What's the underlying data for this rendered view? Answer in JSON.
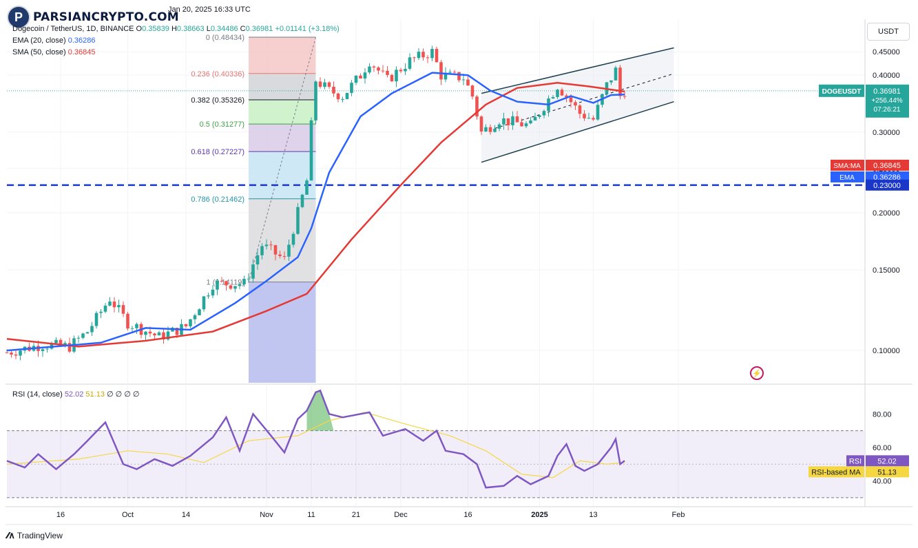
{
  "watermark": {
    "logo_text": "PARSIANCRYPTO.COM",
    "logo_letter": "P"
  },
  "header": {
    "timestamp": "Jan 20, 2025 16:33 UTC",
    "symbol": "Dogecoin / TetherUS, 1D, BINANCE",
    "ohlc": {
      "o_label": "O",
      "o": "0.35839",
      "h_label": "H",
      "h": "0.38663",
      "l_label": "L",
      "l": "0.34486",
      "c_label": "C",
      "c": "0.36981",
      "change": "+0.01141 (+3.18%)"
    },
    "ema": {
      "label": "EMA (20, close)",
      "value": "0.36286"
    },
    "sma": {
      "label": "SMA (50, close)",
      "value": "0.36845"
    }
  },
  "currency_button": "USDT",
  "footer": {
    "brand": "TradingView"
  },
  "colors": {
    "up": "#26a69a",
    "down": "#ef5350",
    "ema": "#2962ff",
    "sma": "#e53935",
    "rsi": "#7e57c2",
    "rsi_ma": "#f5d742",
    "support": "#1a37c8",
    "channel": "#1d3f4f"
  },
  "chart_data": {
    "type": "candlestick",
    "title": "Dogecoin / TetherUS, 1D, BINANCE",
    "y_scale": "log",
    "ylim": [
      0.085,
      0.53
    ],
    "y_ticks": [
      "0.45000",
      "0.40000",
      "0.30000",
      "0.25000",
      "0.20000",
      "0.15000",
      "0.10000"
    ],
    "x_ticks": [
      "16",
      "Oct",
      "14",
      "Nov",
      "11",
      "21",
      "Dec",
      "16",
      "2025",
      "13",
      "Feb"
    ],
    "price_series": [
      {
        "date": "2024-09-04",
        "value": 0.099
      },
      {
        "date": "2024-09-12",
        "value": 0.103
      },
      {
        "date": "2024-09-18",
        "value": 0.102
      },
      {
        "date": "2024-09-22",
        "value": 0.11
      },
      {
        "date": "2024-09-27",
        "value": 0.13
      },
      {
        "date": "2024-10-01",
        "value": 0.115
      },
      {
        "date": "2024-10-08",
        "value": 0.107
      },
      {
        "date": "2024-10-14",
        "value": 0.113
      },
      {
        "date": "2024-10-20",
        "value": 0.14
      },
      {
        "date": "2024-10-27",
        "value": 0.14
      },
      {
        "date": "2024-10-31",
        "value": 0.17
      },
      {
        "date": "2024-11-05",
        "value": 0.158
      },
      {
        "date": "2024-11-08",
        "value": 0.2
      },
      {
        "date": "2024-11-10",
        "value": 0.235
      },
      {
        "date": "2024-11-11",
        "value": 0.31
      },
      {
        "date": "2024-11-12",
        "value": 0.39
      },
      {
        "date": "2024-11-15",
        "value": 0.37
      },
      {
        "date": "2024-11-18",
        "value": 0.36
      },
      {
        "date": "2024-11-22",
        "value": 0.4
      },
      {
        "date": "2024-11-24",
        "value": 0.43
      },
      {
        "date": "2024-11-28",
        "value": 0.39
      },
      {
        "date": "2024-12-03",
        "value": 0.43
      },
      {
        "date": "2024-12-08",
        "value": 0.45
      },
      {
        "date": "2024-12-10",
        "value": 0.4
      },
      {
        "date": "2024-12-15",
        "value": 0.395
      },
      {
        "date": "2024-12-17",
        "value": 0.36
      },
      {
        "date": "2024-12-19",
        "value": 0.3
      },
      {
        "date": "2024-12-23",
        "value": 0.32
      },
      {
        "date": "2024-12-30",
        "value": 0.31
      },
      {
        "date": "2025-01-05",
        "value": 0.38
      },
      {
        "date": "2025-01-08",
        "value": 0.35
      },
      {
        "date": "2025-01-10",
        "value": 0.33
      },
      {
        "date": "2025-01-13",
        "value": 0.32
      },
      {
        "date": "2025-01-16",
        "value": 0.38
      },
      {
        "date": "2025-01-18",
        "value": 0.41
      },
      {
        "date": "2025-01-19",
        "value": 0.36
      },
      {
        "date": "2025-01-20",
        "value": 0.36981
      }
    ],
    "ema_series": [
      {
        "date": "2024-09-04",
        "value": 0.1
      },
      {
        "date": "2024-09-25",
        "value": 0.104
      },
      {
        "date": "2024-10-05",
        "value": 0.112
      },
      {
        "date": "2024-10-15",
        "value": 0.111
      },
      {
        "date": "2024-10-25",
        "value": 0.127
      },
      {
        "date": "2024-11-01",
        "value": 0.142
      },
      {
        "date": "2024-11-08",
        "value": 0.16
      },
      {
        "date": "2024-11-11",
        "value": 0.185
      },
      {
        "date": "2024-11-15",
        "value": 0.245
      },
      {
        "date": "2024-11-22",
        "value": 0.325
      },
      {
        "date": "2024-11-29",
        "value": 0.365
      },
      {
        "date": "2024-12-08",
        "value": 0.405
      },
      {
        "date": "2024-12-16",
        "value": 0.4
      },
      {
        "date": "2024-12-21",
        "value": 0.37
      },
      {
        "date": "2024-12-27",
        "value": 0.35
      },
      {
        "date": "2025-01-03",
        "value": 0.345
      },
      {
        "date": "2025-01-08",
        "value": 0.36
      },
      {
        "date": "2025-01-13",
        "value": 0.348
      },
      {
        "date": "2025-01-17",
        "value": 0.362
      },
      {
        "date": "2025-01-20",
        "value": 0.36286
      }
    ],
    "sma_series": [
      {
        "date": "2024-09-04",
        "value": 0.106
      },
      {
        "date": "2024-09-20",
        "value": 0.102
      },
      {
        "date": "2024-10-05",
        "value": 0.105
      },
      {
        "date": "2024-10-20",
        "value": 0.11
      },
      {
        "date": "2024-11-01",
        "value": 0.122
      },
      {
        "date": "2024-11-10",
        "value": 0.133
      },
      {
        "date": "2024-11-20",
        "value": 0.175
      },
      {
        "date": "2024-12-01",
        "value": 0.23
      },
      {
        "date": "2024-12-10",
        "value": 0.285
      },
      {
        "date": "2024-12-20",
        "value": 0.345
      },
      {
        "date": "2024-12-27",
        "value": 0.375
      },
      {
        "date": "2025-01-05",
        "value": 0.385
      },
      {
        "date": "2025-01-12",
        "value": 0.378
      },
      {
        "date": "2025-01-20",
        "value": 0.36845
      }
    ],
    "fibonacci": [
      {
        "label": "0 (0.48434)",
        "value": 0.48434,
        "color": "#787b86",
        "fill": "#f4c7c7"
      },
      {
        "label": "0.236 (0.40336)",
        "value": 0.40336,
        "color": "#e57373",
        "fill": "#d2d3d7"
      },
      {
        "label": "0.382 (0.35326)",
        "value": 0.35326,
        "color": "#131722",
        "fill": "#c8f0c4"
      },
      {
        "label": "0.5 (0.31277)",
        "value": 0.31277,
        "color": "#43a047",
        "fill": "#d8cbe8"
      },
      {
        "label": "0.618 (0.27227)",
        "value": 0.27227,
        "color": "#5e35b1",
        "fill": "#c7e4f5"
      },
      {
        "label": "0.786 (0.21462)",
        "value": 0.21462,
        "color": "#2196a6",
        "fill": "#dcdcde"
      },
      {
        "label": "1 (0.14119)",
        "value": 0.14119,
        "color": "#787b86",
        "fill": "#b6bcef"
      }
    ],
    "support_level": 0.23,
    "channel": {
      "upper": [
        {
          "date": "2024-12-19",
          "value": 0.365
        },
        {
          "date": "2025-01-31",
          "value": 0.459
        }
      ],
      "lower": [
        {
          "date": "2024-12-19",
          "value": 0.258
        },
        {
          "date": "2025-01-31",
          "value": 0.35
        }
      ],
      "mid": [
        {
          "date": "2024-12-22",
          "value": 0.306
        },
        {
          "date": "2025-01-31",
          "value": 0.403
        }
      ]
    },
    "price_labels": [
      {
        "text": "DOGEUSDT",
        "value_text": "0.36981",
        "change": "+256.44%",
        "countdown": "07:26:21",
        "value": 0.36981,
        "color": "#26a69a"
      },
      {
        "text": "SMA:MA",
        "value_text": "0.36845",
        "value": 0.36845,
        "color": "#e53935"
      },
      {
        "text": "EMA",
        "value_text": "0.36286",
        "value": 0.36286,
        "color": "#2962ff"
      },
      {
        "text": "",
        "value_text": "0.23000",
        "value": 0.23,
        "color": "#1a37c8"
      }
    ],
    "rsi": {
      "label": "RSI (14, close)",
      "value": "52.02",
      "ma_value": "51.13",
      "extra": "∅ ∅ ∅ ∅",
      "ylim": [
        25,
        97
      ],
      "y_ticks": [
        "80.00",
        "60.00",
        "40.00"
      ],
      "upper_band": 70,
      "lower_band": 30,
      "mid_band": 50,
      "rsi_label": "RSI",
      "ma_label": "RSI-based MA",
      "series": [
        {
          "date": "2024-09-04",
          "value": 52
        },
        {
          "date": "2024-09-08",
          "value": 48
        },
        {
          "date": "2024-09-11",
          "value": 56
        },
        {
          "date": "2024-09-15",
          "value": 47
        },
        {
          "date": "2024-09-19",
          "value": 56
        },
        {
          "date": "2024-09-22",
          "value": 64
        },
        {
          "date": "2024-09-26",
          "value": 75
        },
        {
          "date": "2024-09-30",
          "value": 50
        },
        {
          "date": "2024-10-03",
          "value": 47
        },
        {
          "date": "2024-10-07",
          "value": 53
        },
        {
          "date": "2024-10-11",
          "value": 49
        },
        {
          "date": "2024-10-15",
          "value": 55
        },
        {
          "date": "2024-10-20",
          "value": 66
        },
        {
          "date": "2024-10-23",
          "value": 78
        },
        {
          "date": "2024-10-26",
          "value": 58
        },
        {
          "date": "2024-10-29",
          "value": 80
        },
        {
          "date": "2024-11-02",
          "value": 67
        },
        {
          "date": "2024-11-05",
          "value": 57
        },
        {
          "date": "2024-11-08",
          "value": 77
        },
        {
          "date": "2024-11-10",
          "value": 82
        },
        {
          "date": "2024-11-12",
          "value": 93
        },
        {
          "date": "2024-11-13",
          "value": 94
        },
        {
          "date": "2024-11-15",
          "value": 80
        },
        {
          "date": "2024-11-18",
          "value": 78
        },
        {
          "date": "2024-11-22",
          "value": 80
        },
        {
          "date": "2024-11-24",
          "value": 81
        },
        {
          "date": "2024-11-27",
          "value": 67
        },
        {
          "date": "2024-12-02",
          "value": 71
        },
        {
          "date": "2024-12-06",
          "value": 64
        },
        {
          "date": "2024-12-09",
          "value": 70
        },
        {
          "date": "2024-12-11",
          "value": 58
        },
        {
          "date": "2024-12-15",
          "value": 56
        },
        {
          "date": "2024-12-18",
          "value": 50
        },
        {
          "date": "2024-12-20",
          "value": 36
        },
        {
          "date": "2024-12-24",
          "value": 37
        },
        {
          "date": "2024-12-27",
          "value": 43
        },
        {
          "date": "2024-12-30",
          "value": 38
        },
        {
          "date": "2025-01-03",
          "value": 43
        },
        {
          "date": "2025-01-05",
          "value": 55
        },
        {
          "date": "2025-01-07",
          "value": 62
        },
        {
          "date": "2025-01-09",
          "value": 49
        },
        {
          "date": "2025-01-11",
          "value": 46
        },
        {
          "date": "2025-01-14",
          "value": 50
        },
        {
          "date": "2025-01-17",
          "value": 60
        },
        {
          "date": "2025-01-18",
          "value": 65
        },
        {
          "date": "2025-01-19",
          "value": 50
        },
        {
          "date": "2025-01-20",
          "value": 52.02
        }
      ],
      "ma_series": [
        {
          "date": "2024-09-04",
          "value": 50
        },
        {
          "date": "2024-09-20",
          "value": 53
        },
        {
          "date": "2024-10-01",
          "value": 58
        },
        {
          "date": "2024-10-10",
          "value": 56
        },
        {
          "date": "2024-10-18",
          "value": 51
        },
        {
          "date": "2024-10-28",
          "value": 64
        },
        {
          "date": "2024-11-08",
          "value": 67
        },
        {
          "date": "2024-11-15",
          "value": 76
        },
        {
          "date": "2024-11-23",
          "value": 81
        },
        {
          "date": "2024-12-02",
          "value": 74
        },
        {
          "date": "2024-12-12",
          "value": 67
        },
        {
          "date": "2024-12-20",
          "value": 58
        },
        {
          "date": "2024-12-28",
          "value": 44
        },
        {
          "date": "2025-01-04",
          "value": 42
        },
        {
          "date": "2025-01-10",
          "value": 52
        },
        {
          "date": "2025-01-16",
          "value": 50
        },
        {
          "date": "2025-01-20",
          "value": 51.13
        }
      ]
    }
  }
}
